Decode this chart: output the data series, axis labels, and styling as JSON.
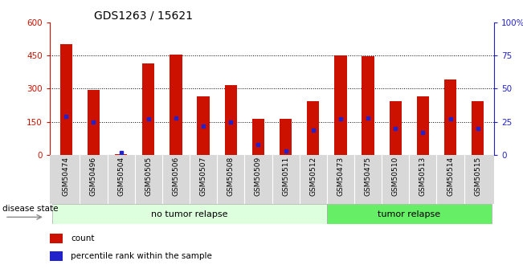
{
  "title": "GDS1263 / 15621",
  "samples": [
    "GSM50474",
    "GSM50496",
    "GSM50504",
    "GSM50505",
    "GSM50506",
    "GSM50507",
    "GSM50508",
    "GSM50509",
    "GSM50511",
    "GSM50512",
    "GSM50473",
    "GSM50475",
    "GSM50510",
    "GSM50513",
    "GSM50514",
    "GSM50515"
  ],
  "counts": [
    500,
    295,
    3,
    415,
    455,
    265,
    315,
    165,
    165,
    245,
    450,
    445,
    245,
    265,
    340,
    245
  ],
  "percentile_ranks": [
    29,
    25,
    2,
    27,
    28,
    22,
    25,
    8,
    3,
    19,
    27,
    28,
    20,
    17,
    27,
    20
  ],
  "bar_color": "#cc1100",
  "marker_color": "#2222cc",
  "no_relapse_count": 10,
  "no_relapse_label": "no tumor relapse",
  "relapse_label": "tumor relapse",
  "no_relapse_color": "#ddffdd",
  "relapse_color": "#66ee66",
  "disease_state_label": "disease state",
  "ylim_left": [
    0,
    600
  ],
  "yticks_left": [
    0,
    150,
    300,
    450,
    600
  ],
  "ylim_right": [
    0,
    100
  ],
  "yticks_right": [
    0,
    25,
    50,
    75,
    100
  ],
  "right_tick_labels": [
    "0",
    "25",
    "50",
    "75",
    "100%"
  ],
  "legend_count_label": "count",
  "legend_pct_label": "percentile rank within the sample",
  "title_fontsize": 10,
  "axis_fontsize": 7.5,
  "tick_label_fontsize": 6.5,
  "group_label_fontsize": 8,
  "legend_fontsize": 7.5
}
